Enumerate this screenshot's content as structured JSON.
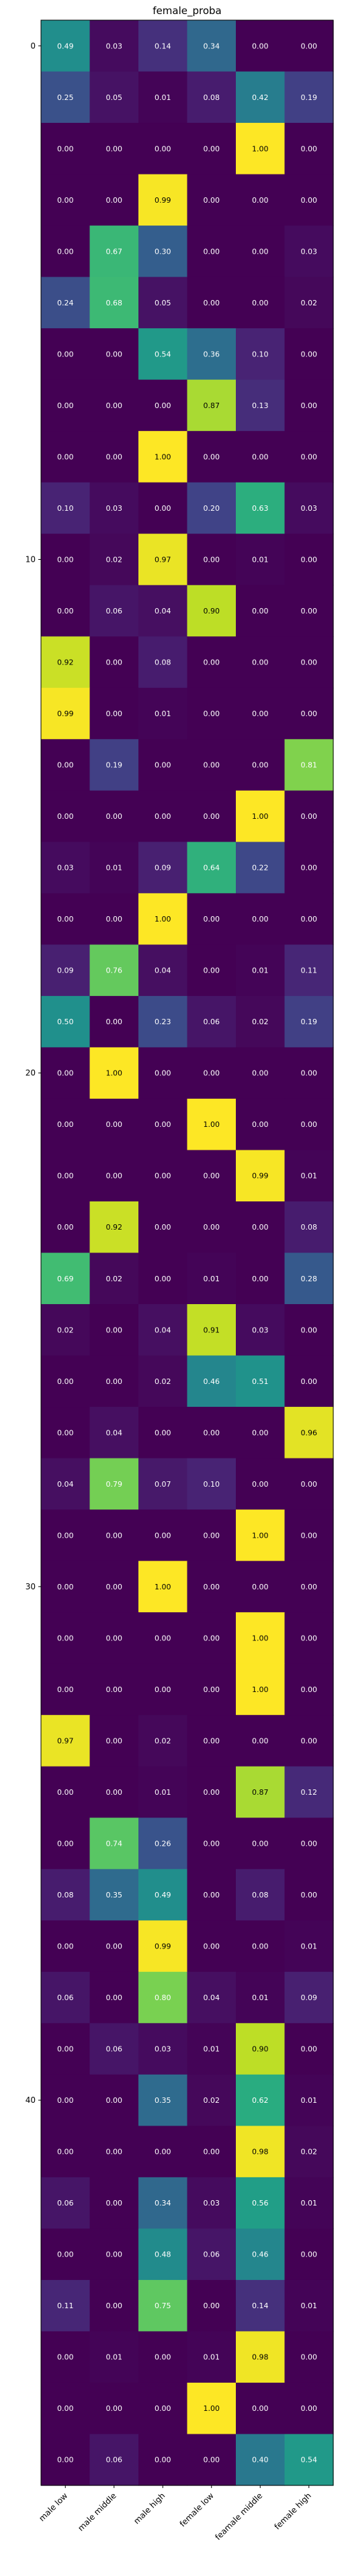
{
  "chart_data": {
    "type": "heatmap",
    "title": "female_proba",
    "xlabel": "",
    "ylabel": "",
    "x_categories": [
      "male low",
      "male middle",
      "male high",
      "female low",
      "feamale middle",
      "female high"
    ],
    "y_tick_labels": [
      "0",
      "10",
      "20",
      "30",
      "40"
    ],
    "y_tick_rows": [
      0,
      10,
      20,
      30,
      40
    ],
    "colormap": "viridis",
    "vmin": 0.0,
    "vmax": 1.0,
    "colorbar": false,
    "values": [
      [
        0.49,
        0.03,
        0.14,
        0.34,
        0.0,
        0.0
      ],
      [
        0.25,
        0.05,
        0.01,
        0.08,
        0.42,
        0.19
      ],
      [
        0.0,
        0.0,
        0.0,
        0.0,
        1.0,
        0.0
      ],
      [
        0.0,
        0.0,
        0.99,
        0.0,
        0.0,
        0.0
      ],
      [
        0.0,
        0.67,
        0.3,
        0.0,
        0.0,
        0.03
      ],
      [
        0.24,
        0.68,
        0.05,
        0.0,
        0.0,
        0.02
      ],
      [
        0.0,
        0.0,
        0.54,
        0.36,
        0.1,
        0.0
      ],
      [
        0.0,
        0.0,
        0.0,
        0.87,
        0.13,
        0.0
      ],
      [
        0.0,
        0.0,
        1.0,
        0.0,
        0.0,
        0.0
      ],
      [
        0.1,
        0.03,
        0.0,
        0.2,
        0.63,
        0.03
      ],
      [
        0.0,
        0.02,
        0.97,
        0.0,
        0.01,
        0.0
      ],
      [
        0.0,
        0.06,
        0.04,
        0.9,
        0.0,
        0.0
      ],
      [
        0.92,
        0.0,
        0.08,
        0.0,
        0.0,
        0.0
      ],
      [
        0.99,
        0.0,
        0.01,
        0.0,
        0.0,
        0.0
      ],
      [
        0.0,
        0.19,
        0.0,
        0.0,
        0.0,
        0.81
      ],
      [
        0.0,
        0.0,
        0.0,
        0.0,
        1.0,
        0.0
      ],
      [
        0.03,
        0.01,
        0.09,
        0.64,
        0.22,
        0.0
      ],
      [
        0.0,
        0.0,
        1.0,
        0.0,
        0.0,
        0.0
      ],
      [
        0.09,
        0.76,
        0.04,
        0.0,
        0.01,
        0.11
      ],
      [
        0.5,
        0.0,
        0.23,
        0.06,
        0.02,
        0.19
      ],
      [
        0.0,
        1.0,
        0.0,
        0.0,
        0.0,
        0.0
      ],
      [
        0.0,
        0.0,
        0.0,
        1.0,
        0.0,
        0.0
      ],
      [
        0.0,
        0.0,
        0.0,
        0.0,
        0.99,
        0.01
      ],
      [
        0.0,
        0.92,
        0.0,
        0.0,
        0.0,
        0.08
      ],
      [
        0.69,
        0.02,
        0.0,
        0.01,
        0.0,
        0.28
      ],
      [
        0.02,
        0.0,
        0.04,
        0.91,
        0.03,
        0.0
      ],
      [
        0.0,
        0.0,
        0.02,
        0.46,
        0.51,
        0.0
      ],
      [
        0.0,
        0.04,
        0.0,
        0.0,
        0.0,
        0.96
      ],
      [
        0.04,
        0.79,
        0.07,
        0.1,
        0.0,
        0.0
      ],
      [
        0.0,
        0.0,
        0.0,
        0.0,
        1.0,
        0.0
      ],
      [
        0.0,
        0.0,
        1.0,
        0.0,
        0.0,
        0.0
      ],
      [
        0.0,
        0.0,
        0.0,
        0.0,
        1.0,
        0.0
      ],
      [
        0.0,
        0.0,
        0.0,
        0.0,
        1.0,
        0.0
      ],
      [
        0.97,
        0.0,
        0.02,
        0.0,
        0.0,
        0.0
      ],
      [
        0.0,
        0.0,
        0.01,
        0.0,
        0.87,
        0.12
      ],
      [
        0.0,
        0.74,
        0.26,
        0.0,
        0.0,
        0.0
      ],
      [
        0.08,
        0.35,
        0.49,
        0.0,
        0.08,
        0.0
      ],
      [
        0.0,
        0.0,
        0.99,
        0.0,
        0.0,
        0.01
      ],
      [
        0.06,
        0.0,
        0.8,
        0.04,
        0.01,
        0.09
      ],
      [
        0.0,
        0.06,
        0.03,
        0.01,
        0.9,
        0.0
      ],
      [
        0.0,
        0.0,
        0.35,
        0.02,
        0.62,
        0.01
      ],
      [
        0.0,
        0.0,
        0.0,
        0.0,
        0.98,
        0.02
      ],
      [
        0.06,
        0.0,
        0.34,
        0.03,
        0.56,
        0.01
      ],
      [
        0.0,
        0.0,
        0.48,
        0.06,
        0.46,
        0.0
      ],
      [
        0.11,
        0.0,
        0.75,
        0.0,
        0.14,
        0.01
      ],
      [
        0.0,
        0.01,
        0.0,
        0.01,
        0.98,
        0.0
      ],
      [
        0.0,
        0.0,
        0.0,
        1.0,
        0.0,
        0.0
      ],
      [
        0.0,
        0.06,
        0.0,
        0.0,
        0.4,
        0.54
      ]
    ]
  }
}
